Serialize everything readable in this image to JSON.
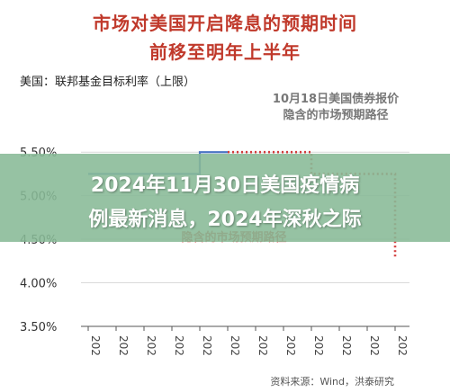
{
  "chart_data": {
    "type": "line",
    "title": "市场对美国开启降息的预期时间",
    "subtitle": "前移至明年上半年",
    "ylabel": "美国：联邦基金目标利率（上限）",
    "ylim": [
      3.5,
      5.75
    ],
    "yticks": [
      "3.50%",
      "4.00%",
      "4.50%",
      "5.00%",
      "5.50%"
    ],
    "ytick_values": [
      3.5,
      4.0,
      4.5,
      5.0,
      5.5
    ],
    "categories": [
      "202",
      "202",
      "202",
      "202",
      "202",
      "202",
      "202",
      "202",
      "202",
      "202",
      "202",
      "202"
    ],
    "series": [
      {
        "name": "",
        "color": "#4a74c4",
        "style": "solid",
        "x": [
          0,
          1,
          2,
          3,
          4,
          5
        ],
        "values": [
          5.25,
          5.25,
          5.25,
          5.25,
          5.5,
          5.5
        ]
      },
      {
        "name": "",
        "color": "#d23b3b",
        "style": "dotted",
        "x": [
          5,
          6,
          7,
          8,
          8,
          9,
          10,
          11,
          11
        ],
        "values": [
          5.5,
          5.5,
          5.5,
          5.5,
          5.25,
          5.25,
          5.25,
          5.25,
          4.3
        ]
      }
    ],
    "annotations": [
      "10月18日美国债券报价",
      "隐含的市场预期路径",
      "隐含的市场预期路径"
    ],
    "grid": "y",
    "legend": "none"
  },
  "overlay": {
    "line1": "2024年11月30日美国疫情病",
    "line2": "例最新消息，2024年深秋之际"
  },
  "source": "资料来源：Wind，洪泰研究"
}
